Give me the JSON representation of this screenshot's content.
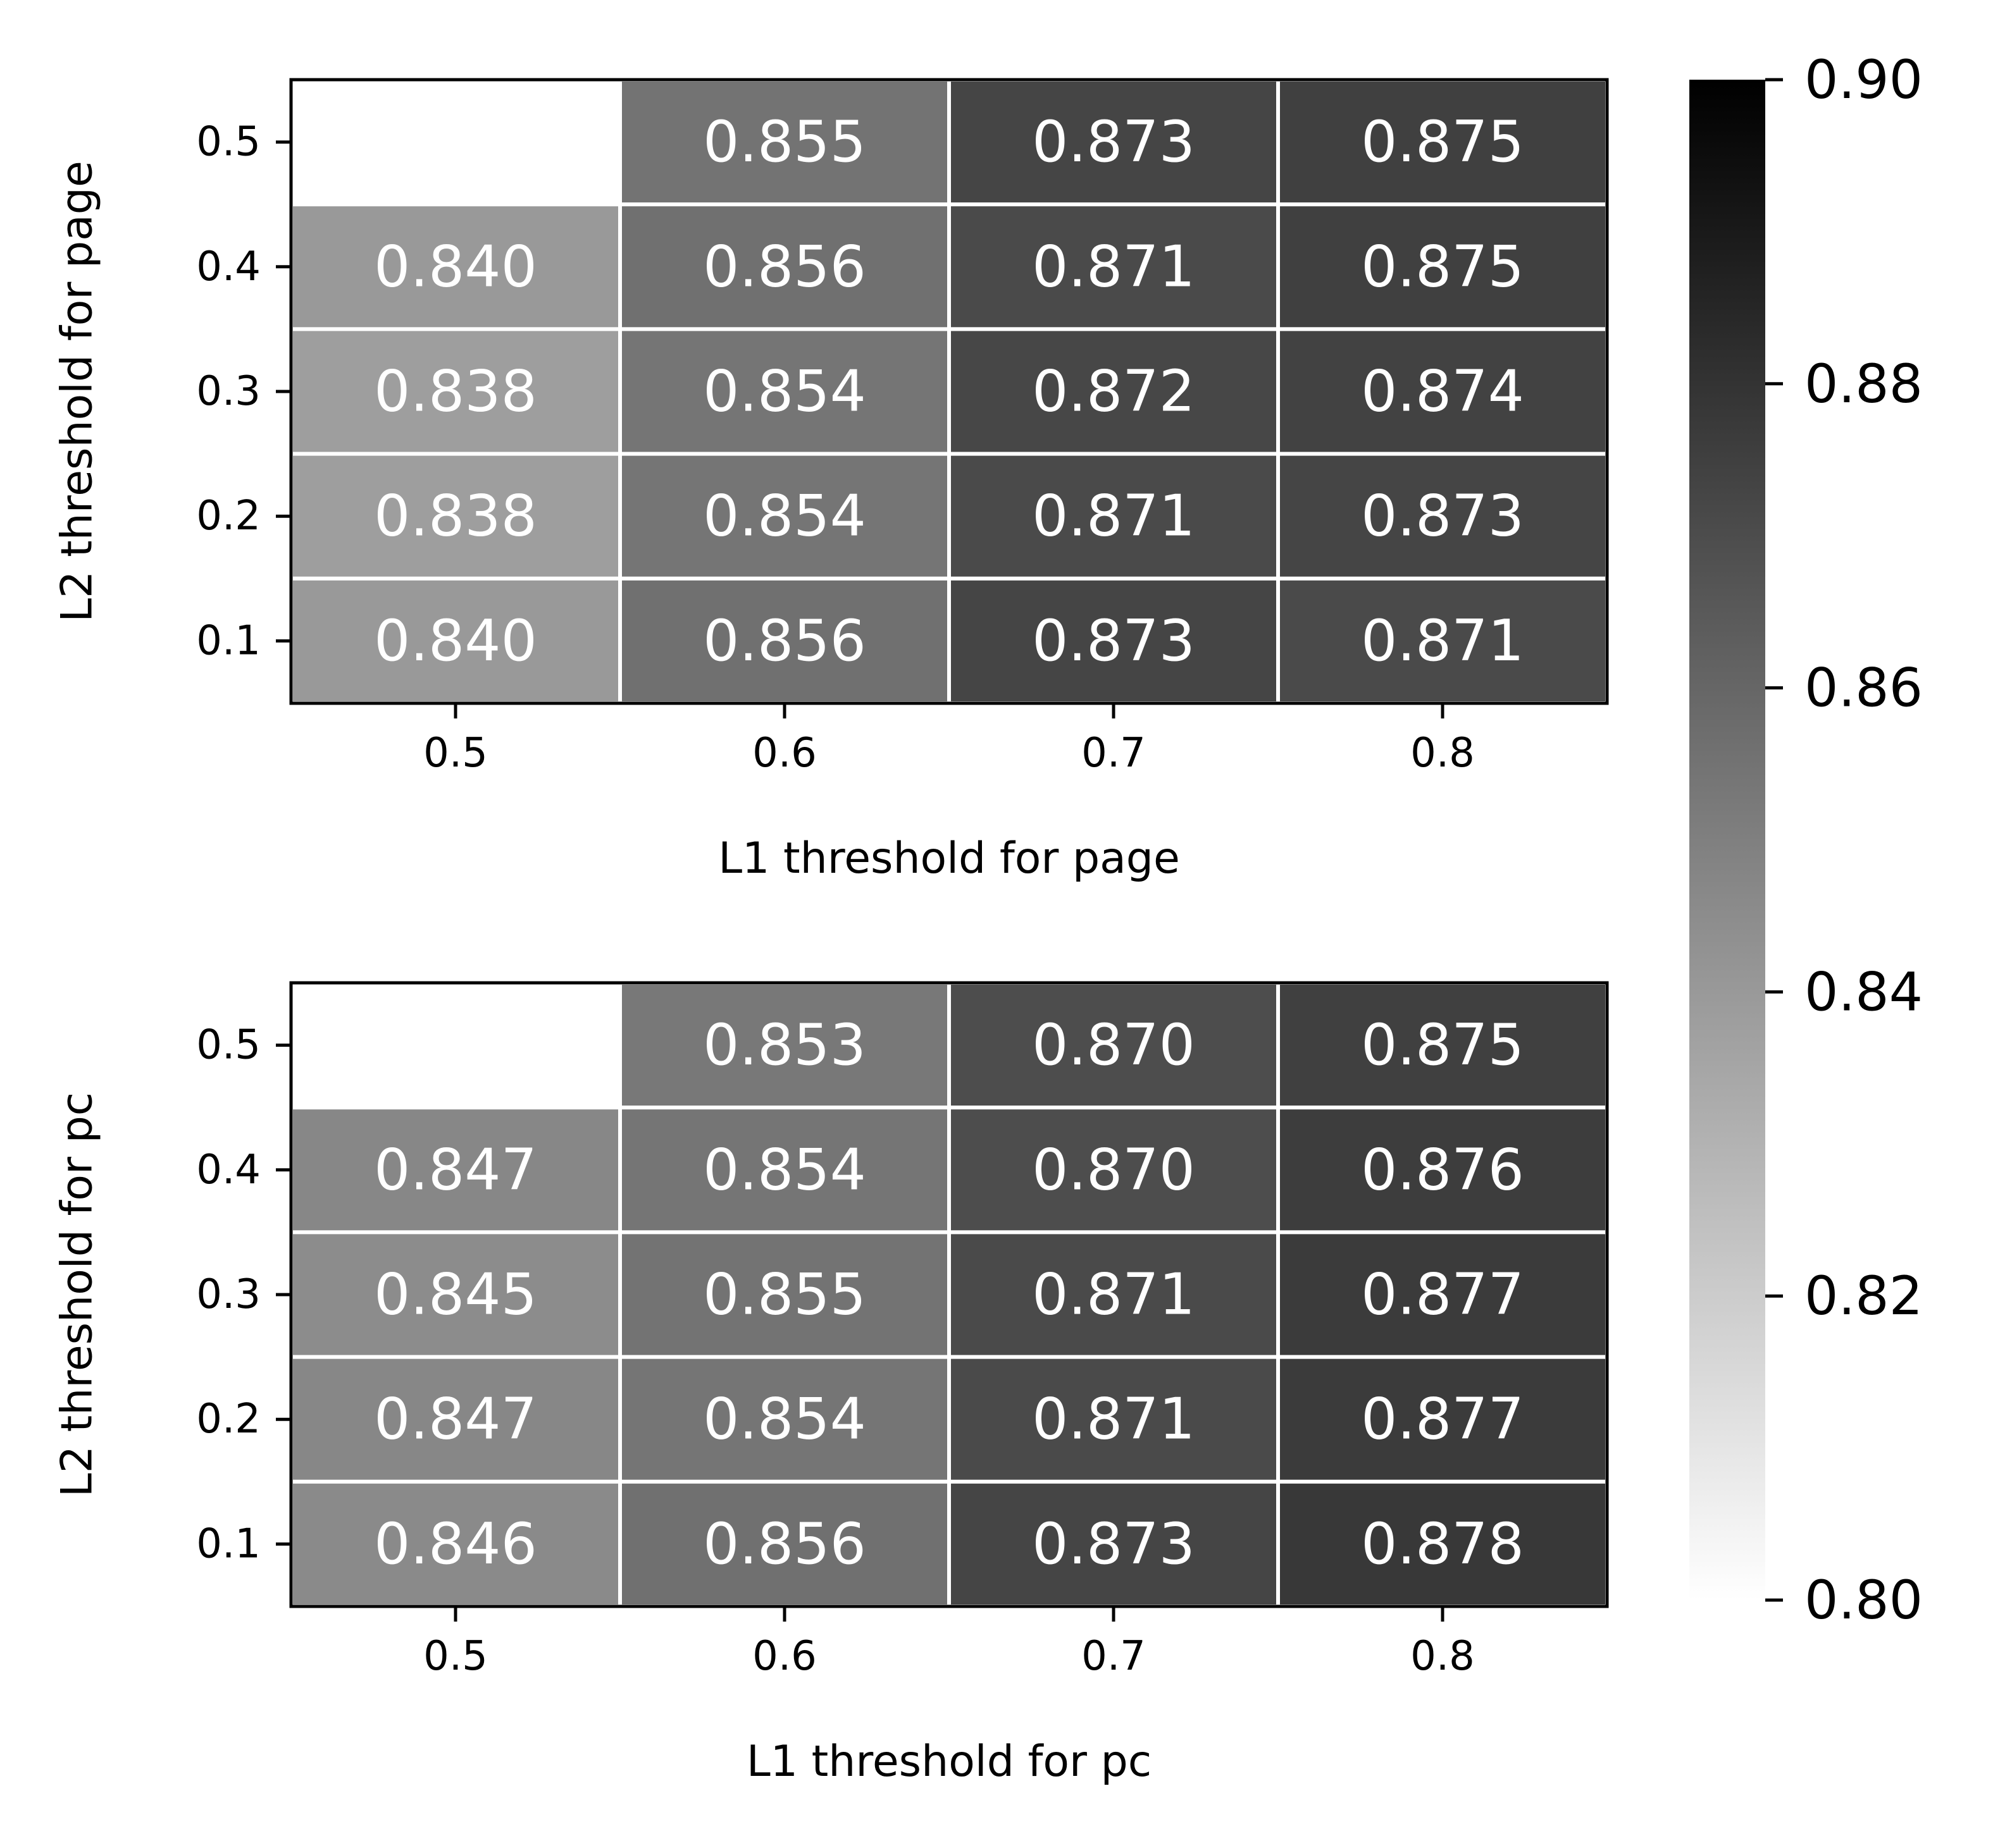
{
  "chart_data": [
    {
      "type": "heatmap",
      "title": "",
      "xlabel": "L1 threshold for page",
      "ylabel": "L2 threshold for page",
      "x_categories": [
        "0.5",
        "0.6",
        "0.7",
        "0.8"
      ],
      "y_categories": [
        "0.5",
        "0.4",
        "0.3",
        "0.2",
        "0.1"
      ],
      "values": [
        [
          null,
          0.855,
          0.873,
          0.875
        ],
        [
          0.84,
          0.856,
          0.871,
          0.875
        ],
        [
          0.838,
          0.854,
          0.872,
          0.874
        ],
        [
          0.838,
          0.854,
          0.871,
          0.873
        ],
        [
          0.84,
          0.856,
          0.873,
          0.871
        ]
      ],
      "value_labels": [
        [
          "",
          "0.855",
          "0.873",
          "0.875"
        ],
        [
          "0.840",
          "0.856",
          "0.871",
          "0.875"
        ],
        [
          "0.838",
          "0.854",
          "0.872",
          "0.874"
        ],
        [
          "0.838",
          "0.854",
          "0.871",
          "0.873"
        ],
        [
          "0.840",
          "0.856",
          "0.873",
          "0.871"
        ]
      ]
    },
    {
      "type": "heatmap",
      "title": "",
      "xlabel": "L1 threshold for pc",
      "ylabel": "L2 threshold for pc",
      "x_categories": [
        "0.5",
        "0.6",
        "0.7",
        "0.8"
      ],
      "y_categories": [
        "0.5",
        "0.4",
        "0.3",
        "0.2",
        "0.1"
      ],
      "values": [
        [
          null,
          0.853,
          0.87,
          0.875
        ],
        [
          0.847,
          0.854,
          0.87,
          0.876
        ],
        [
          0.845,
          0.855,
          0.871,
          0.877
        ],
        [
          0.847,
          0.854,
          0.871,
          0.877
        ],
        [
          0.846,
          0.856,
          0.873,
          0.878
        ]
      ],
      "value_labels": [
        [
          "",
          "0.853",
          "0.870",
          "0.875"
        ],
        [
          "0.847",
          "0.854",
          "0.870",
          "0.876"
        ],
        [
          "0.845",
          "0.855",
          "0.871",
          "0.877"
        ],
        [
          "0.847",
          "0.854",
          "0.871",
          "0.877"
        ],
        [
          "0.846",
          "0.856",
          "0.873",
          "0.878"
        ]
      ]
    }
  ],
  "colorbar": {
    "vmin": 0.8,
    "vmax": 0.9,
    "ticks": [
      0.8,
      0.82,
      0.84,
      0.86,
      0.88,
      0.9
    ],
    "tick_labels": [
      "0.80",
      "0.82",
      "0.84",
      "0.86",
      "0.88",
      "0.90"
    ],
    "colormap": "grayscale (white at min, black at max)"
  },
  "colors": {
    "cell_border": "#ffffff",
    "annotation_text": "#ffffff",
    "axis_color": "#000000",
    "background": "#ffffff"
  }
}
